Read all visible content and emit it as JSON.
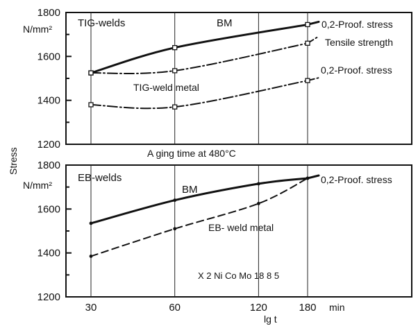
{
  "chart_data": [
    {
      "type": "line",
      "panel": "top",
      "title": "TIG-welds",
      "ylabel": "Stress",
      "yunit": "N/mm²",
      "ylim": [
        1200,
        1800
      ],
      "yticks": [
        "1800",
        "1600",
        "1400",
        "1200"
      ],
      "yticks_values": [
        1800,
        1600,
        1400,
        1200
      ],
      "x_scale": "log",
      "x_values": [
        30,
        60,
        120,
        180
      ],
      "legend_location": "right-side line labels",
      "series": [
        {
          "name": "0,2-Proof. stress",
          "group": "BM",
          "style": "solid-thick",
          "x": [
            30,
            60,
            180
          ],
          "y": [
            1525,
            1640,
            1745
          ],
          "marker": "square"
        },
        {
          "name": "Tensile strength",
          "group": "TIG-weld metal",
          "style": "dash-dot",
          "x": [
            30,
            60,
            180
          ],
          "y": [
            1525,
            1535,
            1660
          ],
          "marker": "square"
        },
        {
          "name": "0,2-Proof. stress",
          "group": "TIG-weld metal",
          "style": "dash-dot",
          "x": [
            30,
            60,
            180
          ],
          "y": [
            1380,
            1370,
            1490
          ],
          "marker": "square"
        }
      ],
      "annotations": {
        "group_label_bm": "BM",
        "group_label_weld": "TIG-weld metal"
      }
    },
    {
      "type": "line",
      "panel": "bottom",
      "title": "EB-welds",
      "yunit": "N/mm²",
      "ylim": [
        1200,
        1800
      ],
      "yticks": [
        "1800",
        "1600",
        "1400",
        "1200"
      ],
      "yticks_values": [
        1800,
        1600,
        1400,
        1200
      ],
      "xlabel": "lg t",
      "xunit": "min",
      "x_scale": "log",
      "x_values": [
        30,
        60,
        120,
        180
      ],
      "xticks": [
        "30",
        "60",
        "120",
        "180"
      ],
      "legend_location": "right-side line labels",
      "series": [
        {
          "name": "0,2-Proof. stress",
          "group": "BM",
          "style": "solid-thick",
          "x": [
            30,
            60,
            120,
            180
          ],
          "y": [
            1535,
            1640,
            1715,
            1740
          ],
          "marker": "dot"
        },
        {
          "name": "EB-weld metal",
          "style": "dashed",
          "x": [
            30,
            60,
            120,
            180
          ],
          "y": [
            1385,
            1510,
            1625,
            1740
          ],
          "marker": "dot"
        }
      ],
      "annotations": {
        "group_label_bm": "BM",
        "group_label_weld": "EB-weld metal",
        "material": "X 2 Ni Co Mo 18 8 5"
      }
    }
  ],
  "middle_caption": "A ging time at 480°C",
  "labels": {
    "top_title": "TIG-welds",
    "top_bm": "BM",
    "top_weld": "TIG-weld metal",
    "top_proof": "0,2-Proof. stress",
    "top_tensile": "Tensile strength",
    "top_weld_proof": "0,2-Proof. stress",
    "unit_top": "N/mm²",
    "ylabel": "Stress",
    "bottom_title": "EB-welds",
    "bottom_bm": "BM",
    "bottom_weld": "EB- weld metal",
    "bottom_proof": "0,2-Proof. stress",
    "unit_bottom": "N/mm²",
    "material": "X 2 Ni Co Mo 18 8 5",
    "xlabel": "lg t",
    "xunit": "min"
  }
}
